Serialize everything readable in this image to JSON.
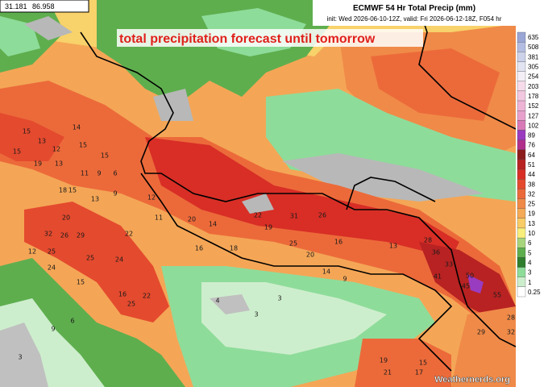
{
  "coordinates": {
    "lat": 31.181,
    "lon": 86.958
  },
  "header": {
    "title": "ECMWF 54 Hr Total Precip (mm)",
    "subtitle": "init: Wed 2026-06-10-12Z, valid: Fri 2026-06-12-18Z, F054 hr"
  },
  "overlay_title": "total precipitation forecast until tomorrow",
  "watermark": "Weathernerds.org",
  "legend": [
    {
      "label": 635,
      "color": "#9aa6d6"
    },
    {
      "label": 508,
      "color": "#b3bde2"
    },
    {
      "label": 381,
      "color": "#ccd2ea"
    },
    {
      "label": 305,
      "color": "#e2e4f2"
    },
    {
      "label": 254,
      "color": "#f4eef6"
    },
    {
      "label": 203,
      "color": "#f6dcea"
    },
    {
      "label": 178,
      "color": "#f2c8e0"
    },
    {
      "label": 152,
      "color": "#eeb4d6"
    },
    {
      "label": 127,
      "color": "#e8a0cc"
    },
    {
      "label": 102,
      "color": "#d87ab8"
    },
    {
      "label": 89,
      "color": "#9a3cc0"
    },
    {
      "label": 76,
      "color": "#b0308c"
    },
    {
      "label": 64,
      "color": "#8c1c1c"
    },
    {
      "label": 51,
      "color": "#b82222"
    },
    {
      "label": 44,
      "color": "#d82e26"
    },
    {
      "label": 38,
      "color": "#e44a2e"
    },
    {
      "label": 32,
      "color": "#ec6a3a"
    },
    {
      "label": 25,
      "color": "#f08a48"
    },
    {
      "label": 19,
      "color": "#f4aa56"
    },
    {
      "label": 13,
      "color": "#f8cc66"
    },
    {
      "label": 10,
      "color": "#f8ee7c"
    },
    {
      "label": 6,
      "color": "#a8d47c"
    },
    {
      "label": 5,
      "color": "#5eae4e"
    },
    {
      "label": 4,
      "color": "#2e7e2e"
    },
    {
      "label": 3,
      "color": "#8edc9a"
    },
    {
      "label": 1,
      "color": "#cdeecd"
    },
    {
      "label": 0.25,
      "color": "#ffffff"
    }
  ],
  "map_labels": [
    15,
    14,
    15,
    13,
    12,
    15,
    19,
    13,
    11,
    9,
    15,
    6,
    18,
    15,
    13,
    9,
    12,
    11,
    20,
    14,
    22,
    31,
    26,
    19,
    32,
    26,
    29,
    20,
    22,
    24,
    25,
    12,
    25,
    24,
    25,
    20,
    16,
    18,
    13,
    16,
    14,
    9,
    28,
    36,
    33,
    45,
    50,
    55,
    41,
    22,
    16,
    15,
    25,
    3,
    3,
    4,
    6,
    9,
    3,
    19,
    21,
    32,
    28,
    29,
    17,
    15
  ]
}
